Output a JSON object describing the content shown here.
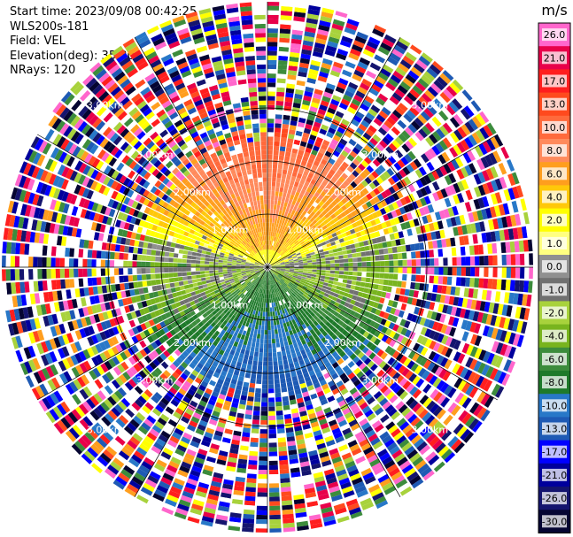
{
  "header": {
    "start_time": "Start time: 2023/09/08 00:42:25",
    "instrument": "WLS200s-181",
    "field": "Field: VEL",
    "elevation": "Elevation(deg): 35.30",
    "nrays": "NRays: 120"
  },
  "colorbar": {
    "unit": "m/s",
    "ticks": [
      "26.0",
      "21.0",
      "17.0",
      "13.0",
      "10.0",
      "8.0",
      "6.0",
      "4.0",
      "2.0",
      "1.0",
      "0.0",
      "-1.0",
      "-2.0",
      "-4.0",
      "-6.0",
      "-8.0",
      "-10.0",
      "-13.0",
      "-17.0",
      "-21.0",
      "-26.0",
      "-30.0"
    ],
    "colors": [
      "#ff66cc",
      "#e8004a",
      "#ff1e1e",
      "#ff4a1e",
      "#ff6a3c",
      "#ff8a5c",
      "#ff9e1e",
      "#ffc80a",
      "#ffff00",
      "#ffff80",
      "#909090",
      "#707070",
      "#a8d23c",
      "#78b41e",
      "#3c8c3c",
      "#1e7a2a",
      "#2878c8",
      "#1e5ab4",
      "#0000ff",
      "#00009c",
      "#14146e",
      "#050532"
    ]
  },
  "chart_data": {
    "type": "heatmap",
    "projection": "PPI",
    "field": "VEL",
    "unit": "m/s",
    "rays": 120,
    "range_rings": [
      {
        "range_km": 1.0,
        "label": "1.00km"
      },
      {
        "range_km": 2.0,
        "label": "2.00km"
      },
      {
        "range_km": 3.0,
        "label": "3.00km"
      }
    ],
    "max_range_km": 5.0,
    "value_range": [
      -30.0,
      26.0
    ],
    "pattern": {
      "north_sector_ms": 8.0,
      "south_sector_ms": -8.0,
      "east_west_ms": -6.0,
      "signal_range_km": 2.4,
      "noise_beyond_km": 2.6
    }
  }
}
